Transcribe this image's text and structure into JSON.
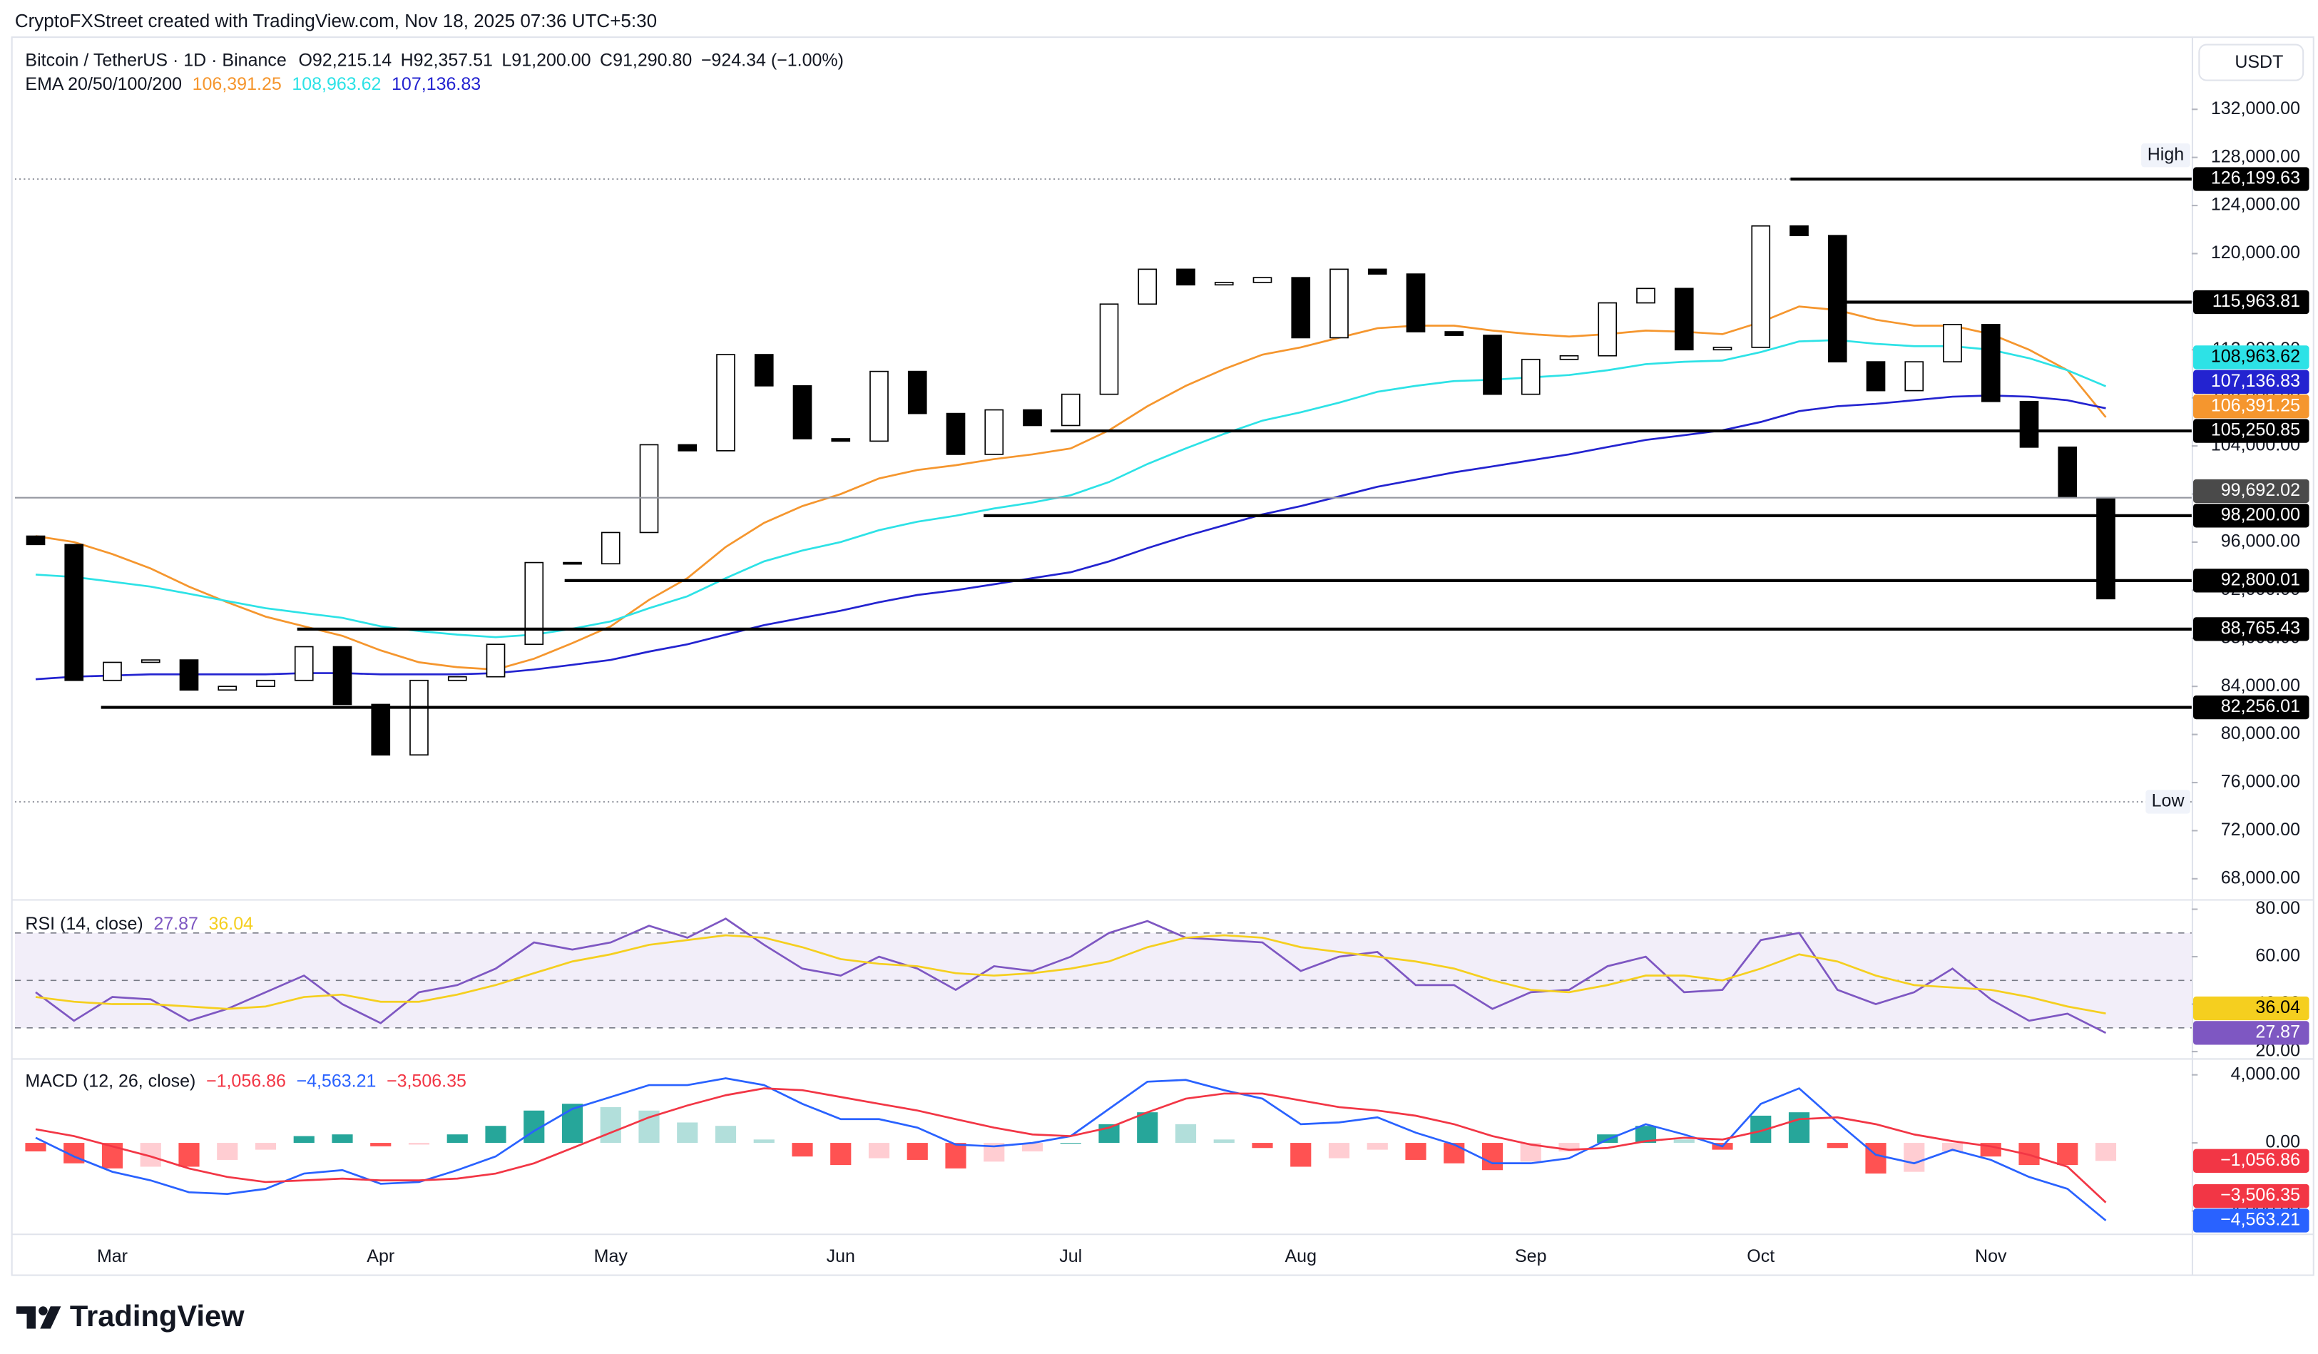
{
  "header": {
    "watermark": "CryptoFXStreet created with TradingView.com, Nov 18, 2025 07:36 UTC+5:30",
    "symbol": "Bitcoin / TetherUS · 1D · Binance",
    "ohlc": [
      "O92,215.14",
      "H92,357.51",
      "L91,200.00",
      "C91,290.80",
      "−924.34 (−1.00%)"
    ],
    "currency": "USDT",
    "brand": "TradingView"
  },
  "chart_data": [
    {
      "type": "candlestick",
      "legend_title": "EMA 20/50/100/200",
      "categories": [
        null,
        null,
        "Mar",
        null,
        null,
        null,
        null,
        null,
        null,
        "Apr",
        null,
        null,
        null,
        null,
        null,
        "May",
        null,
        null,
        null,
        null,
        null,
        "Jun",
        null,
        null,
        null,
        null,
        null,
        "Jul",
        null,
        null,
        null,
        null,
        null,
        "Aug",
        null,
        null,
        null,
        null,
        null,
        "Sep",
        null,
        null,
        null,
        null,
        null,
        "Oct",
        null,
        null,
        null,
        null,
        null,
        "Nov",
        null,
        null,
        null
      ],
      "open": [
        96500,
        95800,
        84500,
        86000,
        86200,
        83700,
        84000,
        84500,
        87300,
        82500,
        78300,
        84500,
        84800,
        87500,
        94300,
        94200,
        96800,
        104100,
        103600,
        111600,
        109000,
        104600,
        104400,
        110200,
        106700,
        103300,
        107000,
        105700,
        108300,
        115800,
        118700,
        117400,
        117600,
        118000,
        113000,
        118700,
        118300,
        113500,
        113200,
        108300,
        111200,
        111500,
        115900,
        117100,
        112000,
        112200,
        122300,
        121500,
        111000,
        108600,
        111000,
        114100,
        107700,
        103900,
        99700
      ],
      "high": {
        "label": "High"
      },
      "low": {
        "label": "Low",
        "value": 74400
      },
      "close": [
        95800,
        84500,
        86000,
        86200,
        83700,
        84000,
        84500,
        87300,
        82500,
        78300,
        84500,
        84800,
        87500,
        94300,
        94200,
        96800,
        104100,
        103600,
        111600,
        109000,
        104600,
        104400,
        110200,
        106700,
        103300,
        107000,
        105700,
        108300,
        115800,
        118700,
        117400,
        117600,
        118000,
        113000,
        118700,
        118300,
        113500,
        113200,
        108300,
        111200,
        111500,
        115900,
        117100,
        112000,
        112200,
        122300,
        121500,
        111000,
        108600,
        111000,
        114100,
        107700,
        103900,
        99700,
        91290.8
      ],
      "up_color": "#ffffff",
      "down_color": "#000000",
      "wick_color": "#000000",
      "series": [
        {
          "color": "#f5962e",
          "text_color": "#ffffff",
          "last_label": "106,391.25",
          "values": [
            96500,
            96000,
            95000,
            93800,
            92300,
            91000,
            89800,
            89000,
            88200,
            87000,
            86000,
            85600,
            85400,
            86300,
            87600,
            89000,
            91200,
            93000,
            95600,
            97600,
            99000,
            100000,
            101300,
            102000,
            102400,
            102900,
            103300,
            103800,
            105300,
            107300,
            109000,
            110400,
            111600,
            112200,
            113000,
            113800,
            114000,
            114000,
            113600,
            113300,
            113100,
            113300,
            113600,
            113500,
            113300,
            114300,
            115600,
            115300,
            114500,
            114000,
            114000,
            113300,
            112000,
            110300,
            106391.25
          ]
        },
        {
          "color": "#2de2e6",
          "text_color": "#000000",
          "last_label": "108,963.62",
          "values": [
            93300,
            93100,
            92700,
            92300,
            91700,
            91100,
            90500,
            90100,
            89700,
            89000,
            88600,
            88300,
            88100,
            88300,
            88800,
            89400,
            90500,
            91500,
            93000,
            94400,
            95300,
            96000,
            97000,
            97700,
            98200,
            98800,
            99300,
            99900,
            101000,
            102500,
            103800,
            105000,
            106100,
            106800,
            107600,
            108500,
            109000,
            109400,
            109500,
            109700,
            109900,
            110300,
            110800,
            111000,
            111100,
            111800,
            112700,
            112800,
            112500,
            112300,
            112300,
            112000,
            111300,
            110300,
            108963.62
          ]
        },
        {
          "color": "#2323d0",
          "text_color": "#ffffff",
          "last_label": "107,136.83",
          "values": [
            84600,
            84800,
            84900,
            85000,
            85000,
            85000,
            85000,
            85100,
            85100,
            85000,
            85000,
            85000,
            85100,
            85400,
            85800,
            86200,
            86900,
            87500,
            88300,
            89100,
            89700,
            90300,
            91000,
            91600,
            92000,
            92500,
            93000,
            93500,
            94400,
            95500,
            96500,
            97400,
            98300,
            99000,
            99800,
            100600,
            101200,
            101800,
            102300,
            102800,
            103300,
            103900,
            104500,
            104900,
            105300,
            106000,
            106900,
            107300,
            107500,
            107800,
            108100,
            108200,
            108100,
            107800,
            107136.83
          ]
        }
      ],
      "levels": [
        {
          "value": 126199.63,
          "label": "126,199.63",
          "color": "#000000",
          "line_style": "solid"
        },
        {
          "value": 115963.81,
          "label": "115,963.81",
          "color": "#000000",
          "line_style": "solid"
        },
        {
          "value": 105250.85,
          "label": "105,250.85",
          "color": "#000000",
          "line_style": "solid"
        },
        {
          "value": 99692.02,
          "label": "99,692.02",
          "color": "#4a4a4a",
          "line_style": "thin"
        },
        {
          "value": 98200.0,
          "label": "98,200.00",
          "color": "#000000",
          "line_style": "solid"
        },
        {
          "value": 92800.01,
          "label": "92,800.01",
          "color": "#000000",
          "line_style": "solid"
        },
        {
          "value": 88765.43,
          "label": "88,765.43",
          "color": "#000000",
          "line_style": "solid"
        },
        {
          "value": 82256.01,
          "label": "82,256.01",
          "color": "#000000",
          "line_style": "solid"
        }
      ],
      "ylim": [
        66300,
        138000
      ],
      "yticks": [
        {
          "value": 68000,
          "label": "68,000.00"
        },
        {
          "value": 72000,
          "label": "72,000.00"
        },
        {
          "value": 76000,
          "label": "76,000.00"
        },
        {
          "value": 80000,
          "label": "80,000.00"
        },
        {
          "value": 84000,
          "label": "84,000.00"
        },
        {
          "value": 88000,
          "label": "88,000.00"
        },
        {
          "value": 92000,
          "label": "92,000.00"
        },
        {
          "value": 96000,
          "label": "96,000.00"
        },
        {
          "value": 100000,
          "label": "100,000.00"
        },
        {
          "value": 104000,
          "label": "104,000.00"
        },
        {
          "value": 108000,
          "label": "108,000.00"
        },
        {
          "value": 112000,
          "label": "112,000.00"
        },
        {
          "value": 116000,
          "label": "116,000.00"
        },
        {
          "value": 120000,
          "label": "120,000.00"
        },
        {
          "value": 124000,
          "label": "124,000.00"
        },
        {
          "value": 128000,
          "label": "128,000.00"
        },
        {
          "value": 132000,
          "label": "132,000.00"
        }
      ],
      "grid": false
    },
    {
      "type": "line",
      "title": "RSI (14, close)",
      "ylim": [
        17.2,
        83.6
      ],
      "yticks": [
        {
          "value": 20,
          "label": "20.00"
        },
        {
          "value": 40,
          "label": "40.00"
        },
        {
          "value": 60,
          "label": "60.00"
        },
        {
          "value": 80,
          "label": "80.00"
        }
      ],
      "band": [
        30,
        70
      ],
      "band_lines": [
        70,
        50,
        30
      ],
      "band_color": "#7e57c2",
      "series": [
        {
          "color": "#7e57c2",
          "text_color": "#ffffff",
          "last_label": "27.87",
          "values": [
            45,
            33,
            43,
            42,
            33,
            38,
            45,
            52,
            40,
            32,
            45,
            48,
            55,
            66,
            63,
            66,
            73,
            68,
            76,
            65,
            55,
            52,
            60,
            55,
            46,
            56,
            54,
            60,
            70,
            75,
            68,
            67,
            66,
            54,
            60,
            62,
            48,
            48,
            38,
            45,
            46,
            56,
            60,
            45,
            46,
            67,
            70,
            46,
            40,
            45,
            55,
            42,
            33,
            36,
            27.87
          ]
        },
        {
          "color": "#f5cf1f",
          "text_color": "#000000",
          "last_label": "36.04",
          "values": [
            43,
            41,
            40,
            40,
            39,
            38,
            39,
            43,
            44,
            41,
            41,
            44,
            48,
            53,
            58,
            61,
            65,
            67,
            69,
            68,
            64,
            59,
            57,
            56,
            53,
            52,
            53,
            55,
            58,
            64,
            68,
            69,
            68,
            64,
            62,
            60,
            58,
            55,
            50,
            46,
            45,
            48,
            52,
            52,
            50,
            55,
            61,
            58,
            52,
            48,
            47,
            46,
            43,
            39,
            36.04
          ]
        }
      ]
    },
    {
      "type": "macd",
      "title": "MACD (12, 26, close)",
      "ylim": [
        -5330,
        4890
      ],
      "yticks": [
        {
          "value": -4000,
          "label": "−4,000.00"
        },
        {
          "value": 0,
          "label": "0.00"
        },
        {
          "value": 4000,
          "label": "4,000.00"
        }
      ],
      "histogram": {
        "colors": [
          "#26a69a",
          "#b2dfdb",
          "#ff5252",
          "#ffcdd2"
        ],
        "text_color": "#ffffff",
        "label_color": "#f23645",
        "last_label": "−1,056.86",
        "values": [
          -500,
          -1200,
          -1500,
          -1400,
          -1400,
          -1000,
          -400,
          400,
          500,
          -200,
          -100,
          500,
          1000,
          1900,
          2300,
          2100,
          1900,
          1200,
          1000,
          200,
          -800,
          -1300,
          -900,
          -1000,
          -1500,
          -1100,
          -500,
          0,
          1100,
          1800,
          1100,
          200,
          -300,
          -1400,
          -900,
          -400,
          -1000,
          -1200,
          -1600,
          -1100,
          -500,
          500,
          1000,
          200,
          -400,
          1600,
          1800,
          -300,
          -1800,
          -1700,
          -500,
          -800,
          -1300,
          -1300,
          -1056.86
        ]
      },
      "series": [
        {
          "color": "#2962ff",
          "text_color": "#ffffff",
          "last_label": "−4,563.21",
          "values": [
            300,
            -800,
            -1700,
            -2200,
            -2900,
            -3000,
            -2700,
            -1800,
            -1600,
            -2400,
            -2300,
            -1600,
            -800,
            700,
            2000,
            2700,
            3400,
            3400,
            3800,
            3400,
            2300,
            1400,
            1400,
            900,
            -100,
            -200,
            0,
            400,
            2000,
            3600,
            3700,
            3100,
            2600,
            1100,
            1200,
            1500,
            600,
            -100,
            -1200,
            -1200,
            -900,
            200,
            1100,
            500,
            -200,
            2300,
            3200,
            1200,
            -700,
            -1200,
            -400,
            -1000,
            -2000,
            -2700,
            -4563.21
          ]
        },
        {
          "color": "#f23645",
          "text_color": "#ffffff",
          "last_label": "−3,506.35",
          "values": [
            800,
            400,
            -200,
            -800,
            -1500,
            -2000,
            -2300,
            -2200,
            -2100,
            -2200,
            -2200,
            -2100,
            -1800,
            -1200,
            -300,
            600,
            1500,
            2200,
            2800,
            3200,
            3100,
            2700,
            2300,
            1900,
            1400,
            900,
            500,
            400,
            900,
            1800,
            2600,
            2900,
            2900,
            2500,
            2100,
            1900,
            1600,
            1100,
            400,
            -100,
            -400,
            -300,
            100,
            300,
            200,
            700,
            1400,
            1500,
            1100,
            500,
            100,
            -200,
            -700,
            -1400,
            -3506.35
          ]
        }
      ]
    }
  ]
}
